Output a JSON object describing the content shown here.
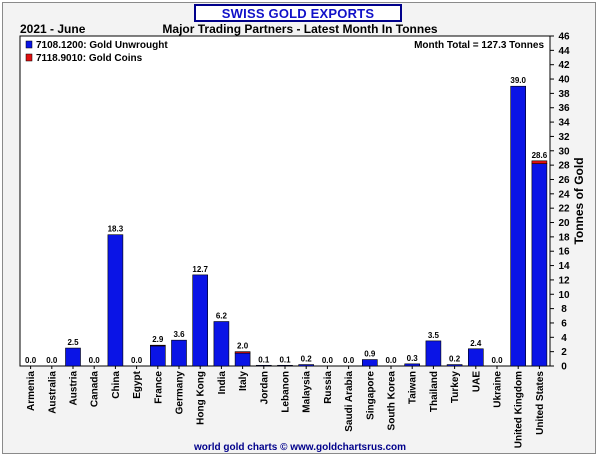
{
  "header": {
    "title": "SWISS GOLD EXPORTS",
    "period": "2021 - June",
    "subtitle": "Major Trading Partners - Latest Month In Tonnes"
  },
  "footer": "world gold charts © www.goldchartsrus.com",
  "chart_data": {
    "type": "bar",
    "stacked": true,
    "ylabel": "Tonnes of Gold",
    "ylim": [
      0,
      46
    ],
    "ytick_step": 2,
    "y_axis_side": "right",
    "grid": false,
    "legend_position": "top-left",
    "annotation": "Month Total = 127.3 Tonnes",
    "categories": [
      "Armenia",
      "Australia",
      "Austria",
      "Canada",
      "China",
      "Egypt",
      "France",
      "Germany",
      "Hong Kong",
      "India",
      "Italy",
      "Jordan",
      "Lebanon",
      "Malaysia",
      "Russia",
      "Saudi Arabia",
      "Singapore",
      "South Korea",
      "Taiwan",
      "Thailand",
      "Turkey",
      "UAE",
      "Ukraine",
      "United Kingdom",
      "United States"
    ],
    "series": [
      {
        "name": "7108.1200: Gold Unwrought",
        "color": "#0a14e6",
        "values": [
          0.0,
          0.0,
          2.5,
          0.0,
          18.3,
          0.0,
          2.8,
          3.6,
          12.7,
          6.2,
          1.8,
          0.1,
          0.1,
          0.2,
          0.0,
          0.0,
          0.9,
          0.0,
          0.3,
          3.5,
          0.2,
          2.4,
          0.0,
          39.0,
          28.2
        ]
      },
      {
        "name": "7118.9010: Gold Coins",
        "color": "#e01010",
        "values": [
          0.0,
          0.0,
          0.0,
          0.0,
          0.0,
          0.0,
          0.1,
          0.0,
          0.0,
          0.0,
          0.2,
          0.0,
          0.0,
          0.0,
          0.0,
          0.0,
          0.0,
          0.0,
          0.0,
          0.0,
          0.0,
          0.0,
          0.0,
          0.0,
          0.4
        ]
      }
    ],
    "totals": [
      "0.0",
      "0.0",
      "2.5",
      "0.0",
      "18.3",
      "0.0",
      "2.9",
      "3.6",
      "12.7",
      "6.2",
      "2.0",
      "0.1",
      "0.1",
      "0.2",
      "0.0",
      "0.0",
      "0.9",
      "0.0",
      "0.3",
      "3.5",
      "0.2",
      "2.4",
      "0.0",
      "39.0",
      "28.6"
    ]
  }
}
